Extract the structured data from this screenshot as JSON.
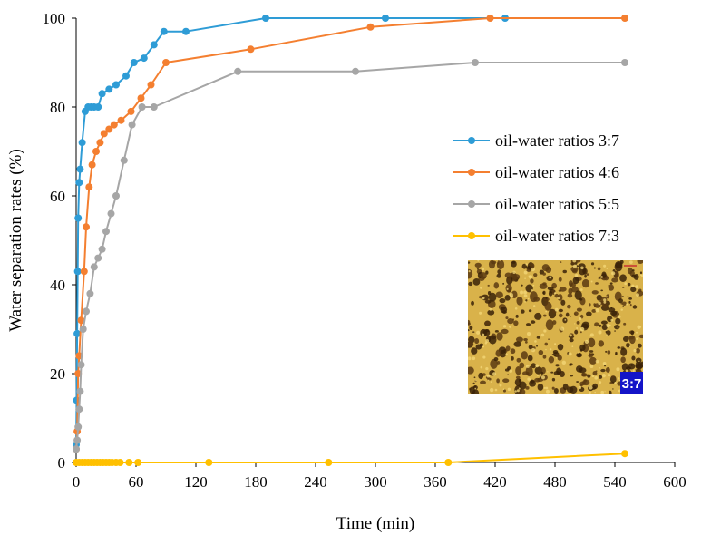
{
  "chart_data": {
    "type": "line",
    "title": "",
    "xlabel": "Time (min)",
    "ylabel": "Water separation rates (%)",
    "xlim": [
      0,
      600
    ],
    "ylim": [
      0,
      100
    ],
    "xticks": [
      0,
      60,
      120,
      180,
      240,
      300,
      360,
      420,
      480,
      540,
      600
    ],
    "yticks": [
      0,
      20,
      40,
      60,
      80,
      100
    ],
    "grid": false,
    "legend_position": "right",
    "series": [
      {
        "name": "oil-water ratios 3:7",
        "color": "#2E9CD6",
        "x": [
          0,
          0.5,
          1,
          1.5,
          2,
          3,
          4,
          6,
          9,
          12,
          15,
          18,
          22,
          26,
          33,
          40,
          50,
          58,
          68,
          78,
          88,
          110,
          190,
          310,
          430
        ],
        "y": [
          4,
          14,
          29,
          43,
          55,
          63,
          66,
          72,
          79,
          80,
          80,
          80,
          80,
          83,
          84,
          85,
          87,
          90,
          91,
          94,
          97,
          97,
          100,
          100,
          100
        ]
      },
      {
        "name": "oil-water ratios 4:6",
        "color": "#F47F30",
        "x": [
          0,
          1,
          2,
          3,
          5,
          8,
          10,
          13,
          16,
          20,
          24,
          28,
          33,
          38,
          45,
          55,
          65,
          75,
          90,
          175,
          295,
          415,
          550
        ],
        "y": [
          3,
          7,
          20,
          24,
          32,
          43,
          53,
          62,
          67,
          70,
          72,
          74,
          75,
          76,
          77,
          79,
          82,
          85,
          90,
          93,
          98,
          100,
          100
        ]
      },
      {
        "name": "oil-water ratios 5:5",
        "color": "#A6A6A6",
        "x": [
          0,
          1,
          2,
          3,
          4,
          5,
          7,
          10,
          14,
          18,
          22,
          26,
          30,
          35,
          40,
          48,
          56,
          66,
          78,
          162,
          280,
          400,
          550
        ],
        "y": [
          3,
          5,
          8,
          12,
          16,
          22,
          30,
          34,
          38,
          44,
          46,
          48,
          52,
          56,
          60,
          68,
          76,
          80,
          80,
          88,
          88,
          90,
          90
        ]
      },
      {
        "name": "oil-water ratios 7:3",
        "color": "#FFC000",
        "x": [
          0,
          3,
          6,
          9,
          12,
          15,
          18,
          21,
          24,
          27,
          30,
          33,
          36,
          40,
          44,
          53,
          62,
          133,
          253,
          373,
          550
        ],
        "y": [
          0,
          0,
          0,
          0,
          0,
          0,
          0,
          0,
          0,
          0,
          0,
          0,
          0,
          0,
          0,
          0,
          0,
          0,
          0,
          0,
          2
        ]
      }
    ],
    "inset": {
      "label": "3:7",
      "label_bg": "#1414C8"
    }
  }
}
